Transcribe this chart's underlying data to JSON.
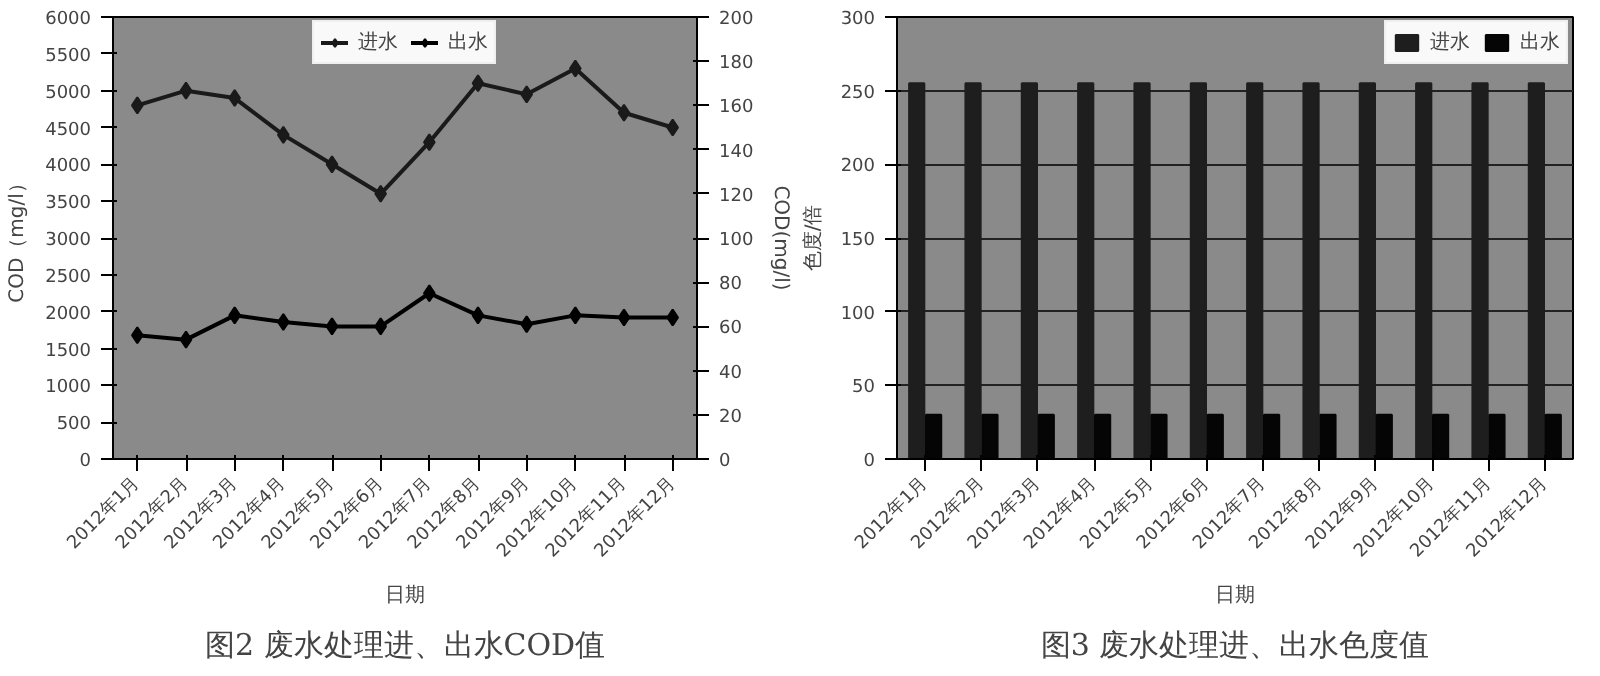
{
  "chart_data": [
    {
      "type": "line",
      "title": "图2 废水处理进、出水COD值",
      "xlabel": "日期",
      "ylabel": "COD（mg/l）",
      "y2label": "COD(mg/l)",
      "categories": [
        "2012年1月",
        "2012年2月",
        "2012年3月",
        "2012年4月",
        "2012年5月",
        "2012年6月",
        "2012年7月",
        "2012年8月",
        "2012年9月",
        "2012年10月",
        "2012年11月",
        "2012年12月"
      ],
      "series": [
        {
          "name": "进水",
          "color": "#1a1a1a",
          "values": [
            4800,
            5000,
            4900,
            4400,
            4000,
            3600,
            4300,
            5100,
            4950,
            5300,
            4700,
            4500
          ]
        },
        {
          "name": "出水",
          "color": "#000000",
          "axis": "y2",
          "values": [
            56,
            54,
            65,
            62,
            60,
            60,
            75,
            65,
            61,
            65,
            64,
            64
          ]
        }
      ],
      "ylim": [
        0,
        6000
      ],
      "yticks": [
        0,
        500,
        1000,
        1500,
        2000,
        2500,
        3000,
        3500,
        4000,
        4500,
        5000,
        5500,
        6000
      ],
      "y2lim": [
        0,
        200
      ],
      "y2ticks": [
        0,
        20,
        40,
        60,
        80,
        100,
        120,
        140,
        160,
        180,
        200
      ],
      "marker": "diamond",
      "line_style": "solid",
      "grid": false,
      "legend": "top"
    },
    {
      "type": "bar",
      "title": "图3 废水处理进、出水色度值",
      "xlabel": "日期",
      "ylabel": "色度/倍",
      "categories": [
        "2012年1月",
        "2012年2月",
        "2012年3月",
        "2012年4月",
        "2012年5月",
        "2012年6月",
        "2012年7月",
        "2012年8月",
        "2012年9月",
        "2012年10月",
        "2012年11月",
        "2012年12月"
      ],
      "series": [
        {
          "name": "进水",
          "color": "#1e1e1e",
          "values": [
            255,
            255,
            255,
            255,
            255,
            255,
            255,
            255,
            255,
            255,
            255,
            255
          ]
        },
        {
          "name": "出水",
          "color": "#050505",
          "values": [
            30,
            30,
            30,
            30,
            30,
            30,
            30,
            30,
            30,
            30,
            30,
            30
          ]
        }
      ],
      "ylim": [
        0,
        300
      ],
      "yticks": [
        0,
        50,
        100,
        150,
        200,
        250,
        300
      ],
      "grid": "y",
      "legend": "top right"
    }
  ]
}
